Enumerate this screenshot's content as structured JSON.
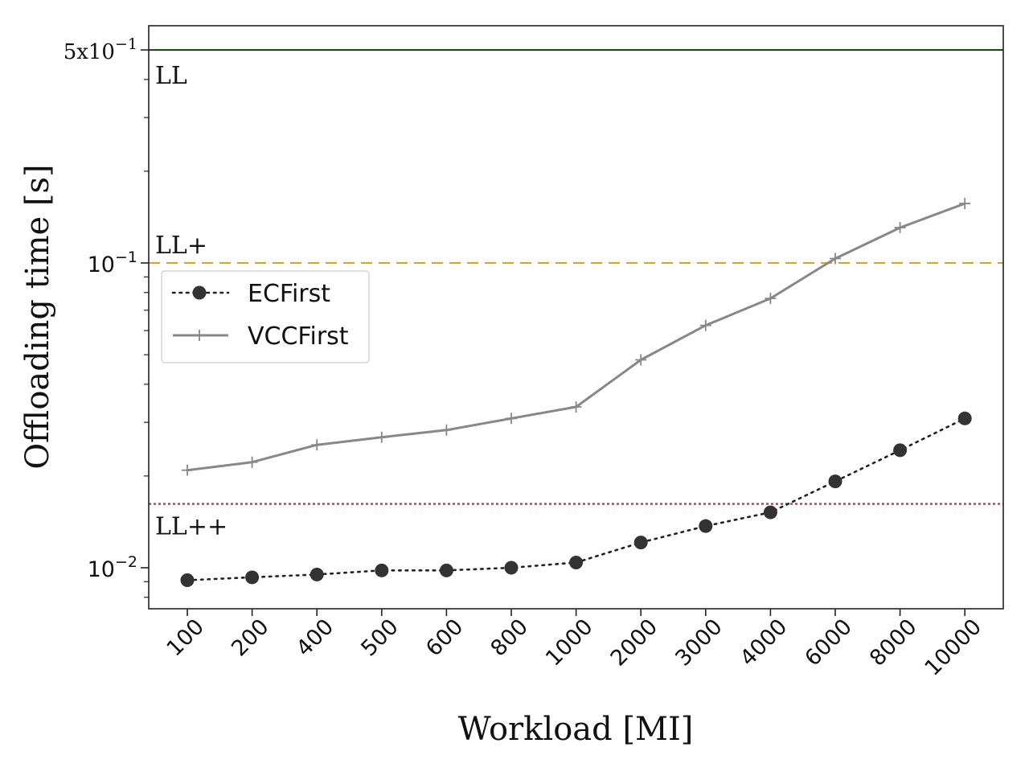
{
  "chart_data": {
    "type": "line",
    "title": "",
    "xlabel": "Workload [MI]",
    "ylabel": "Offloading time [s]",
    "yscale": "log",
    "ylim": [
      0.0077,
      0.57
    ],
    "categories": [
      "100",
      "200",
      "400",
      "500",
      "600",
      "800",
      "1000",
      "2000",
      "3000",
      "4000",
      "6000",
      "8000",
      "10000"
    ],
    "y_tick_labels": [
      {
        "value": 0.5,
        "label": "5x10",
        "exp": "−1"
      },
      {
        "value": 0.1,
        "label": "10",
        "exp": "−1"
      },
      {
        "value": 0.01,
        "label": "10",
        "exp": "−2"
      }
    ],
    "series": [
      {
        "name": "ECFirst",
        "style": "dotted-circle",
        "color": "#333333",
        "values": [
          0.0091,
          0.0093,
          0.0095,
          0.0098,
          0.0098,
          0.01,
          0.0104,
          0.0121,
          0.0137,
          0.0152,
          0.0192,
          0.0243,
          0.0309
        ]
      },
      {
        "name": "VCCFirst",
        "style": "solid-plus",
        "color": "#888888",
        "values": [
          0.0209,
          0.0222,
          0.0253,
          0.0268,
          0.0283,
          0.0309,
          0.0337,
          0.0481,
          0.0624,
          0.0765,
          0.1034,
          0.1306,
          0.1567
        ]
      }
    ],
    "reference_lines": [
      {
        "label": "LL",
        "value": 0.5,
        "color": "#0b3d0b",
        "style": "solid"
      },
      {
        "label": "LL+",
        "value": 0.1,
        "color": "#d9a21e",
        "style": "dashed"
      },
      {
        "label": "LL++",
        "value": 0.0162,
        "color": "#d42a2a",
        "style": "dotted"
      }
    ],
    "legend": {
      "position": "upper-left",
      "entries": [
        "ECFirst",
        "VCCFirst"
      ]
    },
    "grid": false
  }
}
